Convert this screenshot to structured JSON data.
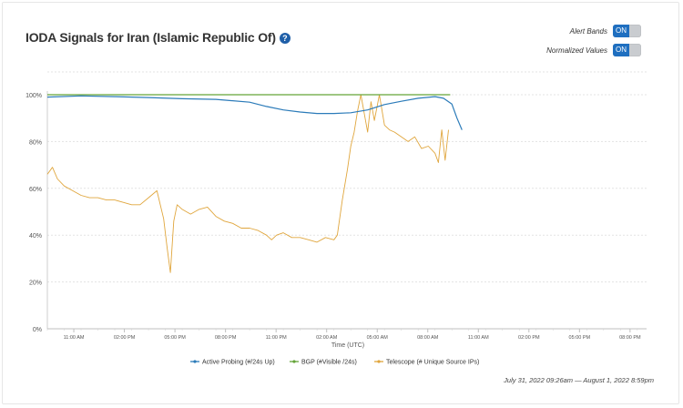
{
  "title": "IODA Signals for Iran (Islamic Republic Of)",
  "help_icon_glyph": "?",
  "controls": {
    "alert_bands": {
      "label": "Alert Bands",
      "state": "ON"
    },
    "normalized_values": {
      "label": "Normalized Values",
      "state": "ON"
    }
  },
  "date_range": "July 31, 2022 09:26am — August 1, 2022 8:59pm",
  "colors": {
    "active_probing": "#2b7bb9",
    "bgp": "#64a338",
    "telescope": "#e0a63d"
  },
  "chart_data": {
    "type": "line",
    "xlabel": "Time (UTC)",
    "ylabel": "",
    "x_tick_labels": [
      "11:00 AM",
      "02:00 PM",
      "05:00 PM",
      "08:00 PM",
      "11:00 PM",
      "02:00 AM",
      "05:00 AM",
      "08:00 AM",
      "11:00 AM",
      "02:00 PM",
      "05:00 PM",
      "08:00 PM"
    ],
    "x_tick_hours": [
      1.57,
      4.57,
      7.57,
      10.57,
      13.57,
      16.57,
      19.57,
      22.57,
      25.57,
      28.57,
      31.57,
      34.57
    ],
    "xlim_hours": [
      0,
      35.55
    ],
    "y_ticks": [
      0,
      20,
      40,
      60,
      80,
      100
    ],
    "y_tick_labels": [
      "0%",
      "20%",
      "40%",
      "60%",
      "80%",
      "100%"
    ],
    "ylim": [
      0,
      100
    ],
    "grid": true,
    "legend_position": "bottom",
    "series": [
      {
        "name": "Active Probing (#/24s Up)",
        "x": [
          0,
          2,
          4,
          6,
          8,
          10,
          12,
          13,
          14,
          15,
          16,
          17,
          18,
          19,
          20,
          21,
          22,
          23,
          23.5,
          24,
          24.3,
          24.6
        ],
        "y": [
          99,
          99.5,
          99.2,
          98.8,
          98.3,
          98,
          96.8,
          95,
          93.5,
          92.6,
          92,
          92,
          92.3,
          93.5,
          95.8,
          97.2,
          98.5,
          99.2,
          98.5,
          96,
          90,
          85
        ]
      },
      {
        "name": "BGP (#Visible /24s)",
        "x": [
          0,
          5,
          10,
          15,
          20,
          23.9
        ],
        "y": [
          100,
          100,
          100,
          100,
          100,
          100
        ]
      },
      {
        "name": "Telescope (# Unique Source IPs)",
        "x": [
          0,
          0.3,
          0.6,
          1,
          1.5,
          2,
          2.5,
          3,
          3.5,
          4,
          4.5,
          5,
          5.5,
          6,
          6.5,
          6.9,
          7.1,
          7.3,
          7.5,
          7.7,
          8,
          8.5,
          9,
          9.5,
          10,
          10.5,
          11,
          11.5,
          12,
          12.5,
          13,
          13.3,
          13.6,
          14,
          14.5,
          15,
          15.5,
          16,
          16.5,
          17,
          17.2,
          17.5,
          17.8,
          18,
          18.2,
          18.4,
          18.6,
          18.8,
          19,
          19.2,
          19.4,
          19.7,
          20,
          20.3,
          20.6,
          21,
          21.4,
          21.8,
          22.2,
          22.6,
          23,
          23.2,
          23.4,
          23.6,
          23.8
        ],
        "y": [
          66,
          69,
          64,
          61,
          59,
          57,
          56,
          56,
          55,
          55,
          54,
          53,
          53,
          56,
          59,
          47,
          35,
          24,
          46,
          53,
          51,
          49,
          51,
          52,
          48,
          46,
          45,
          43,
          43,
          42,
          40,
          38,
          40,
          41,
          39,
          39,
          38,
          37,
          39,
          38,
          40,
          55,
          68,
          78,
          84,
          93,
          100,
          92,
          84,
          97,
          89,
          100,
          87,
          85,
          84,
          82,
          80,
          82,
          77,
          78,
          75,
          71,
          85,
          72,
          85
        ]
      }
    ]
  }
}
